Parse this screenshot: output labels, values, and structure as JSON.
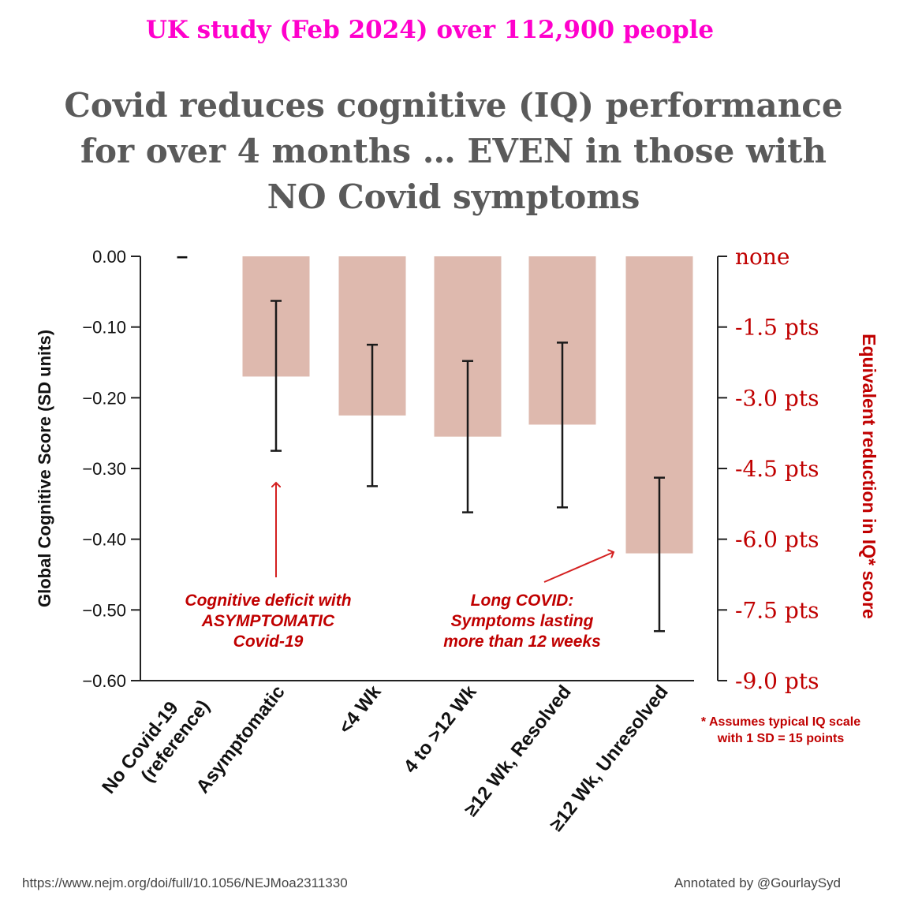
{
  "header": {
    "subtitle": "UK study (Feb 2024) over 112,900 people",
    "title_line1": "Covid reduces cognitive (IQ) performance",
    "title_line2": "for over 4 months … EVEN in those with",
    "title_line3": "NO Covid symptoms"
  },
  "chart_data": {
    "type": "bar",
    "title": "Covid reduces cognitive (IQ) performance for over 4 months … EVEN in those with NO Covid symptoms",
    "ylabel": "Global Cognitive Score (SD units)",
    "ylabel_right": "Equivalent reduction in IQ* score",
    "ylim": [
      -0.6,
      0.0
    ],
    "yticks": [
      "0.00",
      "−0.10",
      "−0.20",
      "−0.30",
      "−0.40",
      "−0.50",
      "−0.60"
    ],
    "ytick_values": [
      0,
      -0.1,
      -0.2,
      -0.3,
      -0.4,
      -0.5,
      -0.6
    ],
    "yticks_right": [
      "none",
      "-1.5 pts",
      "-3.0 pts",
      "-4.5 pts",
      "-6.0 pts",
      "-7.5 pts",
      "-9.0 pts"
    ],
    "categories": [
      {
        "line1": "No Covid-19",
        "line2": "(reference)"
      },
      {
        "line1": "Asymptomatic",
        "line2": ""
      },
      {
        "line1": "<4 Wk",
        "line2": ""
      },
      {
        "line1": "4 to >12 Wk",
        "line2": ""
      },
      {
        "line1": "≥12 Wk, Resolved",
        "line2": ""
      },
      {
        "line1": "≥12 Wk, Unresolved",
        "line2": ""
      }
    ],
    "values": [
      0.0,
      -0.17,
      -0.225,
      -0.255,
      -0.238,
      -0.42
    ],
    "ci_low": [
      null,
      -0.275,
      -0.325,
      -0.362,
      -0.355,
      -0.53
    ],
    "ci_high": [
      null,
      -0.063,
      -0.125,
      -0.148,
      -0.122,
      -0.313
    ],
    "reference_marker": "–",
    "annotations": [
      {
        "lines": [
          "Cognitive deficit with",
          "ASYMPTOMATIC",
          "Covid-19"
        ]
      },
      {
        "lines": [
          "Long COVID:",
          "Symptoms lasting",
          "more than 12 weeks"
        ]
      }
    ],
    "colors": {
      "bar": "#deb9ae",
      "error": "#1a1a1a",
      "accent": "#c00000",
      "axis": "#222222"
    }
  },
  "note": {
    "line1": "* Assumes typical IQ scale",
    "line2": "with 1 SD = 15 points"
  },
  "footer": {
    "source": "https://www.nejm.org/doi/full/10.1056/NEJMoa2311330",
    "credit": "Annotated by @GourlaySyd"
  }
}
